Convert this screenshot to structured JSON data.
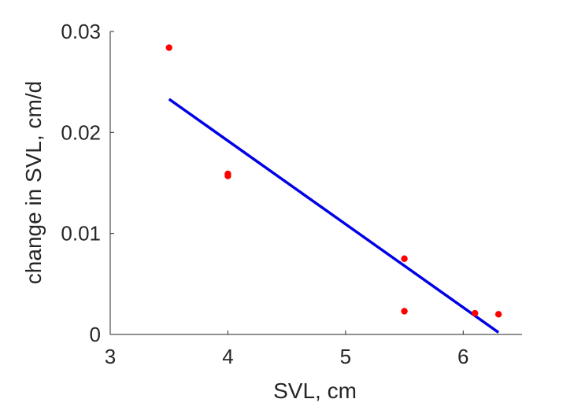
{
  "chart_data": {
    "type": "scatter",
    "title": "",
    "xlabel": "SVL, cm",
    "ylabel": "change in SVL, cm/d",
    "xlim": [
      3,
      6.5
    ],
    "ylim": [
      0,
      0.03
    ],
    "xticks": [
      3,
      4,
      5,
      6
    ],
    "xtick_labels": [
      "3",
      "4",
      "5",
      "6"
    ],
    "yticks": [
      0,
      0.01,
      0.02,
      0.03
    ],
    "ytick_labels": [
      "0",
      "0.01",
      "0.02",
      "0.03"
    ],
    "grid": false,
    "box": false,
    "series": [
      {
        "type": "scatter",
        "color": "#ff0000",
        "points": [
          {
            "x": 3.5,
            "y": 0.0284
          },
          {
            "x": 4.0,
            "y": 0.0159
          },
          {
            "x": 4.0,
            "y": 0.0157
          },
          {
            "x": 5.5,
            "y": 0.0075
          },
          {
            "x": 5.5,
            "y": 0.0023
          },
          {
            "x": 6.1,
            "y": 0.0021
          },
          {
            "x": 6.3,
            "y": 0.002
          }
        ]
      },
      {
        "type": "line",
        "color": "#0000e6",
        "points": [
          {
            "x": 3.5,
            "y": 0.0233
          },
          {
            "x": 6.3,
            "y": 0.0002
          }
        ]
      }
    ]
  }
}
